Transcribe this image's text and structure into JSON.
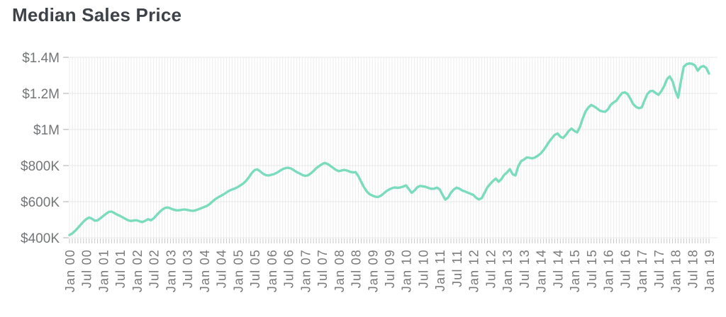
{
  "page": {
    "background_color": "#ffffff",
    "title_color": "#3d4349",
    "axis_text_color": "#75777a"
  },
  "chart_data": {
    "type": "line",
    "title": "Median Sales Price",
    "xlabel": "",
    "ylabel": "",
    "x_interval": "monthly",
    "x_start": "Jan 2000",
    "x_end": "Jan 2019",
    "x_label_every_n_months": 6,
    "x_tick_labels": [
      "Jan 00",
      "Jul 00",
      "Jan 01",
      "Jul 01",
      "Jan 02",
      "Jul 02",
      "Jan 03",
      "Jul 03",
      "Jan 04",
      "Jul 04",
      "Jan 05",
      "Jul 05",
      "Jan 06",
      "Jul 06",
      "Jan 07",
      "Jul 07",
      "Jan 08",
      "Jul 08",
      "Jan 09",
      "Jul 09",
      "Jan 10",
      "Jul 10",
      "Jan 11",
      "Jul 11",
      "Jan 12",
      "Jul 12",
      "Jan 13",
      "Jul 13",
      "Jan 14",
      "Jul 14",
      "Jan 15",
      "Jul 15",
      "Jan 16",
      "Jul 16",
      "Jan 17",
      "Jul 17",
      "Jan 18",
      "Jul 18",
      "Jan 19"
    ],
    "y_tick_labels": [
      "$400K",
      "$600K",
      "$800K",
      "$1M",
      "$1.2M",
      "$1.4M"
    ],
    "y_tick_values_k": [
      400,
      600,
      800,
      1000,
      1200,
      1400
    ],
    "ylim_k": [
      400,
      1400
    ],
    "values_unit": "USD thousands",
    "grid": "on",
    "legend": "none",
    "line_color": "#7adcbd",
    "grid_color_vertical": "#ededed",
    "grid_color_horizontal": "#e7e7e7",
    "tick_color": "#c9c9c9",
    "series": [
      {
        "name": "Median Sales Price",
        "values_k": [
          415,
          424,
          438,
          455,
          472,
          490,
          503,
          512,
          506,
          495,
          496,
          508,
          520,
          532,
          543,
          545,
          537,
          528,
          521,
          513,
          504,
          496,
          493,
          496,
          497,
          491,
          487,
          494,
          503,
          497,
          507,
          524,
          541,
          555,
          565,
          568,
          563,
          556,
          552,
          552,
          555,
          557,
          554,
          551,
          549,
          552,
          558,
          564,
          570,
          577,
          587,
          601,
          614,
          624,
          632,
          641,
          651,
          661,
          668,
          673,
          681,
          691,
          701,
          716,
          736,
          759,
          775,
          779,
          768,
          755,
          747,
          745,
          749,
          753,
          761,
          771,
          780,
          786,
          788,
          784,
          774,
          764,
          757,
          748,
          743,
          746,
          756,
          770,
          786,
          797,
          808,
          815,
          809,
          799,
          787,
          776,
          769,
          773,
          776,
          772,
          766,
          762,
          764,
          741,
          710,
          680,
          656,
          641,
          634,
          628,
          626,
          633,
          645,
          658,
          668,
          675,
          679,
          677,
          679,
          684,
          690,
          669,
          649,
          662,
          680,
          687,
          685,
          682,
          676,
          671,
          672,
          678,
          668,
          638,
          611,
          623,
          650,
          667,
          678,
          672,
          662,
          657,
          650,
          644,
          637,
          621,
          612,
          620,
          650,
          680,
          698,
          715,
          728,
          710,
          725,
          749,
          762,
          780,
          752,
          745,
          796,
          824,
          833,
          845,
          843,
          840,
          845,
          855,
          867,
          885,
          908,
          932,
          952,
          970,
          978,
          960,
          953,
          970,
          992,
          1005,
          992,
          984,
          1015,
          1062,
          1100,
          1122,
          1136,
          1128,
          1118,
          1105,
          1100,
          1098,
          1112,
          1137,
          1150,
          1160,
          1182,
          1202,
          1206,
          1196,
          1170,
          1140,
          1125,
          1118,
          1122,
          1160,
          1196,
          1212,
          1214,
          1202,
          1192,
          1212,
          1240,
          1278,
          1294,
          1268,
          1215,
          1176,
          1268,
          1348,
          1362,
          1366,
          1364,
          1355,
          1326,
          1346,
          1352,
          1342,
          1310
        ]
      }
    ]
  }
}
